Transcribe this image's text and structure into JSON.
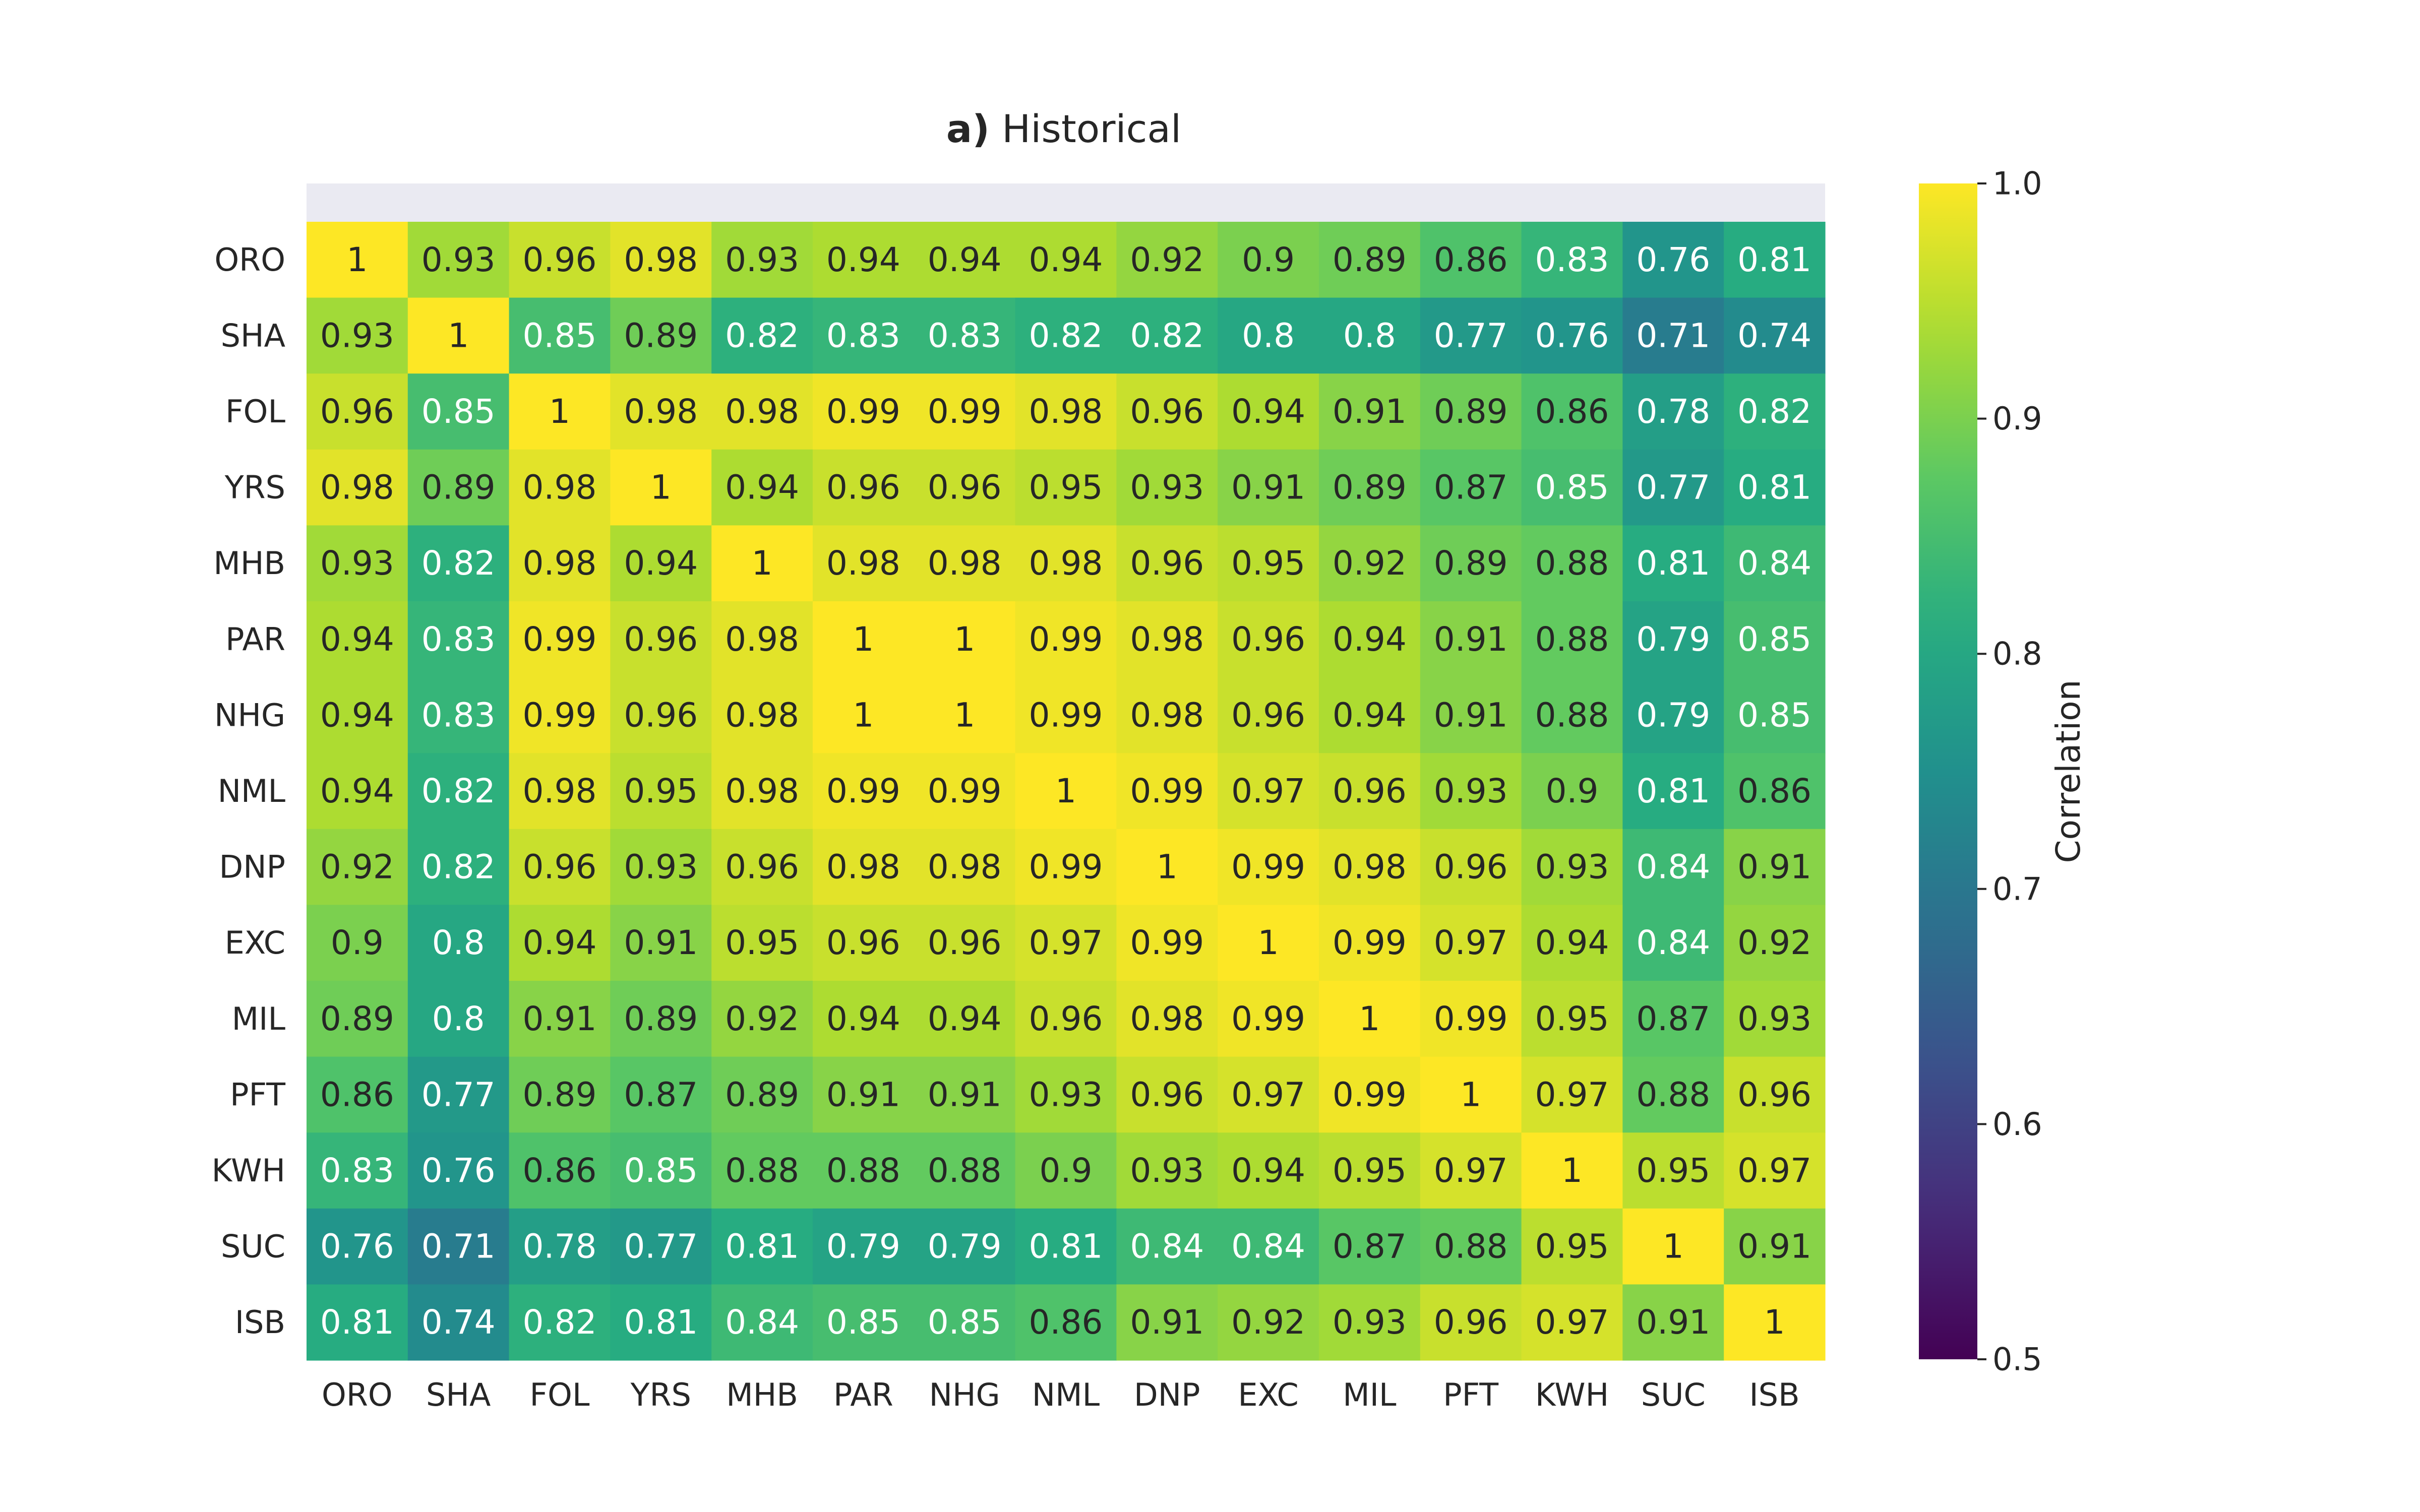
{
  "chart_data": {
    "type": "heatmap",
    "title": "a) Historical",
    "title_bold_prefix": "a)",
    "title_rest": " Historical",
    "labels": [
      "ORO",
      "SHA",
      "FOL",
      "YRS",
      "MHB",
      "PAR",
      "NHG",
      "NML",
      "DNP",
      "EXC",
      "MIL",
      "PFT",
      "KWH",
      "SUC",
      "ISB"
    ],
    "row_labels": [
      "ORO",
      "SHA",
      "FOL",
      "YRS",
      "MHB",
      "PAR",
      "NHG",
      "NML",
      "DNP",
      "EXC",
      "MIL",
      "PFT",
      "KWH",
      "SUC",
      "ISB"
    ],
    "col_labels": [
      "ORO",
      "SHA",
      "FOL",
      "YRS",
      "MHB",
      "PAR",
      "NHG",
      "NML",
      "DNP",
      "EXC",
      "MIL",
      "PFT",
      "KWH",
      "SUC",
      "ISB"
    ],
    "values": [
      [
        1,
        0.93,
        0.96,
        0.98,
        0.93,
        0.94,
        0.94,
        0.94,
        0.92,
        0.9,
        0.89,
        0.86,
        0.83,
        0.76,
        0.81
      ],
      [
        0.93,
        1,
        0.85,
        0.89,
        0.82,
        0.83,
        0.83,
        0.82,
        0.82,
        0.8,
        0.8,
        0.77,
        0.76,
        0.71,
        0.74
      ],
      [
        0.96,
        0.85,
        1,
        0.98,
        0.98,
        0.99,
        0.99,
        0.98,
        0.96,
        0.94,
        0.91,
        0.89,
        0.86,
        0.78,
        0.82
      ],
      [
        0.98,
        0.89,
        0.98,
        1,
        0.94,
        0.96,
        0.96,
        0.95,
        0.93,
        0.91,
        0.89,
        0.87,
        0.85,
        0.77,
        0.81
      ],
      [
        0.93,
        0.82,
        0.98,
        0.94,
        1,
        0.98,
        0.98,
        0.98,
        0.96,
        0.95,
        0.92,
        0.89,
        0.88,
        0.81,
        0.84
      ],
      [
        0.94,
        0.83,
        0.99,
        0.96,
        0.98,
        1,
        1,
        0.99,
        0.98,
        0.96,
        0.94,
        0.91,
        0.88,
        0.79,
        0.85
      ],
      [
        0.94,
        0.83,
        0.99,
        0.96,
        0.98,
        1,
        1,
        0.99,
        0.98,
        0.96,
        0.94,
        0.91,
        0.88,
        0.79,
        0.85
      ],
      [
        0.94,
        0.82,
        0.98,
        0.95,
        0.98,
        0.99,
        0.99,
        1,
        0.99,
        0.97,
        0.96,
        0.93,
        0.9,
        0.81,
        0.86
      ],
      [
        0.92,
        0.82,
        0.96,
        0.93,
        0.96,
        0.98,
        0.98,
        0.99,
        1,
        0.99,
        0.98,
        0.96,
        0.93,
        0.84,
        0.91
      ],
      [
        0.9,
        0.8,
        0.94,
        0.91,
        0.95,
        0.96,
        0.96,
        0.97,
        0.99,
        1,
        0.99,
        0.97,
        0.94,
        0.84,
        0.92
      ],
      [
        0.89,
        0.8,
        0.91,
        0.89,
        0.92,
        0.94,
        0.94,
        0.96,
        0.98,
        0.99,
        1,
        0.99,
        0.95,
        0.87,
        0.93
      ],
      [
        0.86,
        0.77,
        0.89,
        0.87,
        0.89,
        0.91,
        0.91,
        0.93,
        0.96,
        0.97,
        0.99,
        1,
        0.97,
        0.88,
        0.96
      ],
      [
        0.83,
        0.76,
        0.86,
        0.85,
        0.88,
        0.88,
        0.88,
        0.9,
        0.93,
        0.94,
        0.95,
        0.97,
        1,
        0.95,
        0.97
      ],
      [
        0.76,
        0.71,
        0.78,
        0.77,
        0.81,
        0.79,
        0.79,
        0.81,
        0.84,
        0.84,
        0.87,
        0.88,
        0.95,
        1,
        0.91
      ],
      [
        0.81,
        0.74,
        0.82,
        0.81,
        0.84,
        0.85,
        0.85,
        0.86,
        0.91,
        0.92,
        0.93,
        0.96,
        0.97,
        0.91,
        1
      ]
    ],
    "colormap": "viridis",
    "vmin": 0.5,
    "vmax": 1.0,
    "colorbar": {
      "label": "Correlation",
      "ticks": [
        0.5,
        0.6,
        0.7,
        0.8,
        0.9,
        1.0
      ],
      "tick_labels": [
        "0.5",
        "0.6",
        "0.7",
        "0.8",
        "0.9",
        "1.0"
      ]
    },
    "annotations": true,
    "text_color_dark": "#262626",
    "text_color_light": "#ffffff",
    "header_band_color": "#eaeaf2"
  }
}
